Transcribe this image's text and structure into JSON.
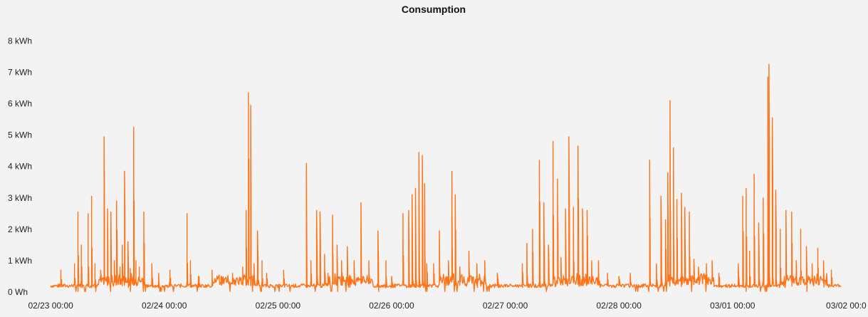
{
  "chart_data": {
    "type": "line",
    "title": "Consumption",
    "xlabel": "",
    "ylabel": "",
    "y_unit": "kWh",
    "ylim": [
      0,
      8.6
    ],
    "y_ticks": [
      {
        "value": 0,
        "label": "0 Wh"
      },
      {
        "value": 1,
        "label": "1 kWh"
      },
      {
        "value": 2,
        "label": "2 kWh"
      },
      {
        "value": 3,
        "label": "3 kWh"
      },
      {
        "value": 4,
        "label": "4 kWh"
      },
      {
        "value": 5,
        "label": "5 kWh"
      },
      {
        "value": 6,
        "label": "6 kWh"
      },
      {
        "value": 7,
        "label": "7 kWh"
      },
      {
        "value": 8,
        "label": "8 kWh"
      }
    ],
    "x_unit": "days since 02/23 00:00",
    "xlim": [
      -0.12,
      6.96
    ],
    "x_ticks": [
      {
        "value": 0,
        "label": "02/23 00:00"
      },
      {
        "value": 1,
        "label": "02/24 00:00"
      },
      {
        "value": 2,
        "label": "02/25 00:00"
      },
      {
        "value": 3,
        "label": "02/26 00:00"
      },
      {
        "value": 4,
        "label": "02/27 00:00"
      },
      {
        "value": 5,
        "label": "02/28 00:00"
      },
      {
        "value": 6,
        "label": "03/01 00:00"
      },
      {
        "value": 7,
        "label": "03/02 00:0"
      }
    ],
    "grid": false,
    "legend": "none",
    "series": [
      {
        "name": "Consumption",
        "color": "#ff7216",
        "baseline": 0.2,
        "spikes": [
          [
            0.09,
            0.7
          ],
          [
            0.21,
            0.9
          ],
          [
            0.24,
            2.55
          ],
          [
            0.27,
            1.5
          ],
          [
            0.33,
            2.5
          ],
          [
            0.36,
            3.05
          ],
          [
            0.39,
            0.9
          ],
          [
            0.44,
            0.7
          ],
          [
            0.47,
            4.95
          ],
          [
            0.5,
            2.65
          ],
          [
            0.53,
            2.55
          ],
          [
            0.56,
            1.0
          ],
          [
            0.58,
            2.9
          ],
          [
            0.61,
            0.8
          ],
          [
            0.63,
            1.5
          ],
          [
            0.65,
            3.85
          ],
          [
            0.68,
            1.6
          ],
          [
            0.7,
            0.75
          ],
          [
            0.73,
            5.25
          ],
          [
            0.75,
            1.0
          ],
          [
            0.78,
            0.8
          ],
          [
            0.82,
            2.55
          ],
          [
            0.89,
            0.9
          ],
          [
            0.95,
            0.6
          ],
          [
            1.05,
            0.7
          ],
          [
            1.2,
            2.5
          ],
          [
            1.23,
            1.0
          ],
          [
            1.3,
            0.5
          ],
          [
            1.42,
            0.7
          ],
          [
            1.5,
            0.5
          ],
          [
            1.6,
            0.6
          ],
          [
            1.69,
            0.8
          ],
          [
            1.72,
            2.6
          ],
          [
            1.74,
            6.35
          ],
          [
            1.76,
            5.95
          ],
          [
            1.79,
            0.9
          ],
          [
            1.82,
            1.95
          ],
          [
            1.86,
            1.0
          ],
          [
            1.9,
            0.6
          ],
          [
            2.05,
            0.7
          ],
          [
            2.25,
            4.1
          ],
          [
            2.29,
            1.0
          ],
          [
            2.34,
            2.6
          ],
          [
            2.37,
            2.55
          ],
          [
            2.41,
            1.2
          ],
          [
            2.44,
            0.6
          ],
          [
            2.48,
            2.45
          ],
          [
            2.52,
            1.5
          ],
          [
            2.56,
            1.0
          ],
          [
            2.61,
            1.45
          ],
          [
            2.67,
            1.0
          ],
          [
            2.73,
            2.85
          ],
          [
            2.8,
            1.0
          ],
          [
            2.88,
            1.95
          ],
          [
            2.95,
            1.0
          ],
          [
            3.0,
            0.5
          ],
          [
            3.1,
            2.5
          ],
          [
            3.15,
            2.6
          ],
          [
            3.18,
            3.1
          ],
          [
            3.21,
            3.3
          ],
          [
            3.24,
            4.45
          ],
          [
            3.27,
            4.35
          ],
          [
            3.29,
            3.45
          ],
          [
            3.31,
            0.9
          ],
          [
            3.37,
            0.9
          ],
          [
            3.42,
            1.95
          ],
          [
            3.5,
            1.0
          ],
          [
            3.53,
            3.85
          ],
          [
            3.56,
            3.1
          ],
          [
            3.6,
            0.8
          ],
          [
            3.68,
            1.3
          ],
          [
            3.75,
            0.9
          ],
          [
            3.82,
            1.0
          ],
          [
            3.93,
            0.6
          ],
          [
            4.15,
            0.9
          ],
          [
            4.19,
            1.55
          ],
          [
            4.24,
            2.0
          ],
          [
            4.3,
            4.2
          ],
          [
            4.34,
            2.85
          ],
          [
            4.38,
            1.5
          ],
          [
            4.42,
            4.8
          ],
          [
            4.46,
            3.6
          ],
          [
            4.49,
            1.1
          ],
          [
            4.53,
            2.65
          ],
          [
            4.56,
            4.95
          ],
          [
            4.6,
            2.7
          ],
          [
            4.64,
            4.65
          ],
          [
            4.68,
            2.65
          ],
          [
            4.72,
            2.6
          ],
          [
            4.76,
            1.0
          ],
          [
            4.82,
            1.0
          ],
          [
            4.9,
            0.6
          ],
          [
            5.0,
            0.5
          ],
          [
            5.1,
            0.6
          ],
          [
            5.27,
            4.2
          ],
          [
            5.33,
            0.9
          ],
          [
            5.37,
            3.05
          ],
          [
            5.41,
            2.3
          ],
          [
            5.43,
            3.8
          ],
          [
            5.45,
            6.1
          ],
          [
            5.48,
            4.6
          ],
          [
            5.51,
            2.95
          ],
          [
            5.55,
            3.15
          ],
          [
            5.58,
            2.7
          ],
          [
            5.62,
            2.55
          ],
          [
            5.66,
            1.05
          ],
          [
            5.7,
            0.8
          ],
          [
            5.77,
            0.9
          ],
          [
            5.82,
            1.0
          ],
          [
            5.88,
            0.6
          ],
          [
            6.05,
            0.9
          ],
          [
            6.09,
            3.05
          ],
          [
            6.12,
            3.3
          ],
          [
            6.15,
            1.3
          ],
          [
            6.19,
            3.75
          ],
          [
            6.23,
            2.2
          ],
          [
            6.27,
            3.0
          ],
          [
            6.31,
            6.85
          ],
          [
            6.32,
            7.25
          ],
          [
            6.35,
            5.55
          ],
          [
            6.38,
            3.25
          ],
          [
            6.42,
            2.0
          ],
          [
            6.47,
            2.6
          ],
          [
            6.52,
            2.55
          ],
          [
            6.56,
            1.0
          ],
          [
            6.6,
            2.0
          ],
          [
            6.65,
            1.45
          ],
          [
            6.7,
            0.9
          ],
          [
            6.75,
            1.4
          ],
          [
            6.8,
            1.0
          ],
          [
            6.87,
            0.7
          ]
        ]
      }
    ]
  }
}
